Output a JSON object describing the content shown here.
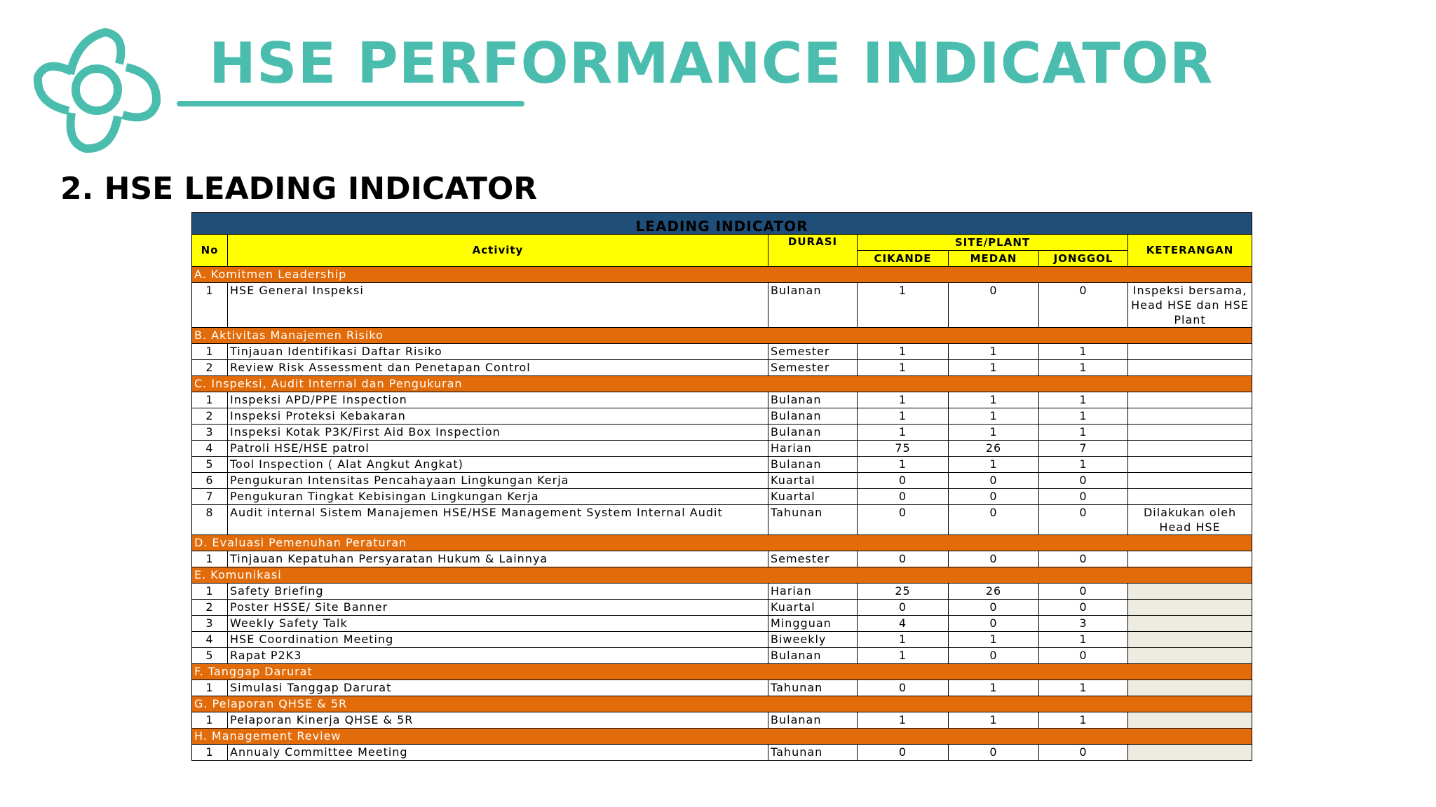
{
  "header": {
    "title": "HSE PERFORMANCE INDICATOR",
    "subtitle": "2. HSE LEADING INDICATOR"
  },
  "table": {
    "title": "LEADING INDICATOR",
    "columns": {
      "no": "No",
      "activity": "Activity",
      "durasi": "DURASI",
      "site_plant": "SITE/PLANT",
      "sites": [
        "CIKANDE",
        "MEDAN",
        "JONGGOL"
      ],
      "keterangan": "KETERANGAN"
    },
    "sections": [
      {
        "label": "A. Komitmen Leadership",
        "rows": [
          {
            "no": 1,
            "activity": "HSE General Inspeksi",
            "durasi": "Bulanan",
            "values": [
              1,
              0,
              0
            ],
            "keterangan": "Inspeksi bersama, Head HSE dan HSE Plant"
          }
        ]
      },
      {
        "label": "B. Aktivitas Manajemen Risiko",
        "rows": [
          {
            "no": 1,
            "activity": "Tinjauan Identifikasi Daftar Risiko",
            "durasi": "Semester",
            "values": [
              1,
              1,
              1
            ]
          },
          {
            "no": 2,
            "activity": "Review Risk Assessment dan Penetapan Control",
            "durasi": "Semester",
            "values": [
              1,
              1,
              1
            ]
          }
        ]
      },
      {
        "label": "C. Inspeksi, Audit Internal dan Pengukuran",
        "rows": [
          {
            "no": 1,
            "activity": "Inspeksi APD/PPE Inspection",
            "durasi": "Bulanan",
            "values": [
              1,
              1,
              1
            ]
          },
          {
            "no": 2,
            "activity": "Inspeksi Proteksi Kebakaran",
            "durasi": "Bulanan",
            "values": [
              1,
              1,
              1
            ]
          },
          {
            "no": 3,
            "activity": "Inspeksi Kotak P3K/First Aid Box Inspection",
            "durasi": "Bulanan",
            "values": [
              1,
              1,
              1
            ]
          },
          {
            "no": 4,
            "activity": "Patroli HSE/HSE patrol",
            "durasi": "Harian",
            "values": [
              75,
              26,
              7
            ]
          },
          {
            "no": 5,
            "activity": "Tool Inspection ( Alat Angkut Angkat)",
            "durasi": "Bulanan",
            "values": [
              1,
              1,
              1
            ]
          },
          {
            "no": 6,
            "activity": "Pengukuran Intensitas Pencahayaan Lingkungan Kerja",
            "durasi": "Kuartal",
            "values": [
              0,
              0,
              0
            ]
          },
          {
            "no": 7,
            "activity": "Pengukuran Tingkat Kebisingan Lingkungan Kerja",
            "durasi": "Kuartal",
            "values": [
              0,
              0,
              0
            ]
          },
          {
            "no": 8,
            "activity": "Audit internal Sistem Manajemen HSE/HSE Management System Internal Audit",
            "durasi": "Tahunan",
            "values": [
              0,
              0,
              0
            ],
            "keterangan": "Dilakukan oleh Head HSE"
          }
        ]
      },
      {
        "label": "D. Evaluasi Pemenuhan Peraturan",
        "rows": [
          {
            "no": 1,
            "activity": "Tinjauan Kepatuhan Persyaratan Hukum & Lainnya",
            "durasi": "Semester",
            "values": [
              0,
              0,
              0
            ]
          }
        ]
      },
      {
        "label": "E. Komunikasi",
        "rows": [
          {
            "no": 1,
            "activity": "Safety Briefing",
            "durasi": "Harian",
            "values": [
              25,
              26,
              0
            ]
          },
          {
            "no": 2,
            "activity": "Poster HSSE/ Site Banner",
            "durasi": "Kuartal",
            "values": [
              0,
              0,
              0
            ]
          },
          {
            "no": 3,
            "activity": "Weekly Safety Talk",
            "durasi": "Mingguan",
            "values": [
              4,
              0,
              3
            ]
          },
          {
            "no": 4,
            "activity": "HSE Coordination Meeting",
            "durasi": "Biweekly",
            "values": [
              1,
              1,
              1
            ]
          },
          {
            "no": 5,
            "activity": "Rapat P2K3",
            "durasi": "Bulanan",
            "values": [
              1,
              0,
              0
            ]
          }
        ]
      },
      {
        "label": "F. Tanggap Darurat",
        "rows": [
          {
            "no": 1,
            "activity": "Simulasi Tanggap Darurat",
            "durasi": "Tahunan",
            "values": [
              0,
              1,
              1
            ]
          }
        ]
      },
      {
        "label": "G.  Pelaporan QHSE & 5R",
        "rows": [
          {
            "no": 1,
            "activity": "Pelaporan Kinerja QHSE & 5R",
            "durasi": "Bulanan",
            "values": [
              1,
              1,
              1
            ]
          }
        ]
      },
      {
        "label": "H.  Management Review",
        "rows": [
          {
            "no": 1,
            "activity": "Annualy  Committee Meeting",
            "durasi": "Tahunan",
            "values": [
              0,
              0,
              0
            ]
          }
        ]
      }
    ]
  }
}
